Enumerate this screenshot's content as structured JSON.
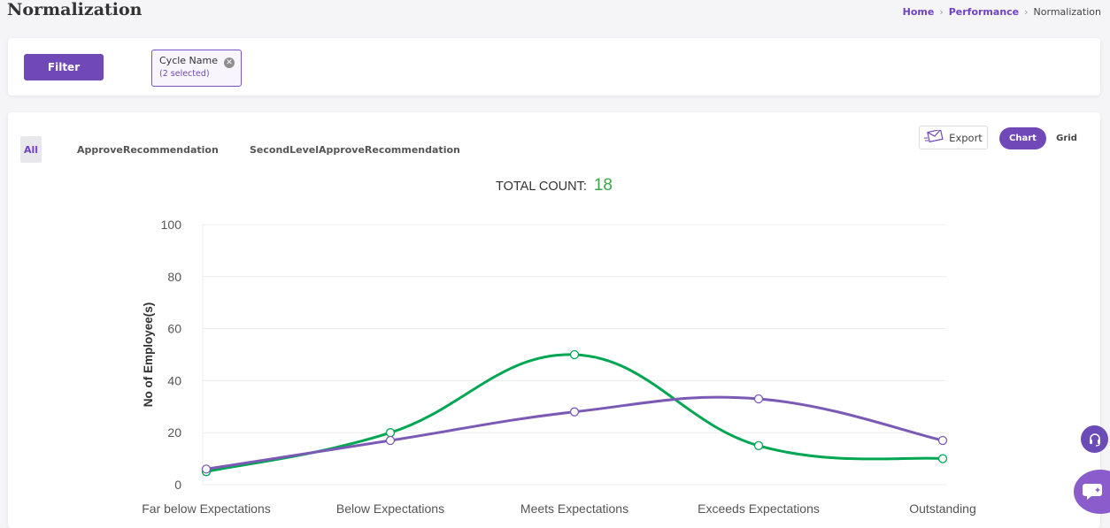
{
  "header": {
    "title": "Normalization",
    "breadcrumb": [
      {
        "label": "Home"
      },
      {
        "label": "Performance"
      },
      {
        "label": "Normalization"
      }
    ]
  },
  "filter": {
    "button_label": "Filter",
    "chip": {
      "title": "Cycle Name",
      "subtitle": "(2 selected)"
    }
  },
  "tabs": [
    {
      "label": "All",
      "active": true
    },
    {
      "label": "ApproveRecommendation",
      "active": false
    },
    {
      "label": "SecondLevelApproveRecommendation",
      "active": false
    }
  ],
  "toolbar": {
    "export_label": "Export",
    "view_options": [
      "Chart",
      "Grid"
    ],
    "selected_view": "Chart"
  },
  "summary": {
    "total_label": "TOTAL COUNT:",
    "total_value": "18"
  },
  "colors": {
    "accent": "#7048b8",
    "green_series": "#00a651",
    "purple_series": "#7b5ab5",
    "total_value": "#3aa54a"
  },
  "icons": {
    "export": "envelope-icon",
    "help": "headset-icon",
    "chat": "chat-icon",
    "chip_close": "close-circle-icon"
  },
  "chart_data": {
    "type": "line",
    "categories": [
      "Far below Expectations",
      "Below Expectations",
      "Meets Expectations",
      "Exceeds Expectations",
      "Outstanding"
    ],
    "series": [
      {
        "values": [
          5,
          20,
          50,
          15,
          10
        ],
        "color": "#00a651"
      },
      {
        "values": [
          6,
          17,
          28,
          33,
          17
        ],
        "color": "#7b5ab5"
      }
    ],
    "ylabel": "No of Employee(s)",
    "xlabel": "",
    "ylim": [
      0,
      100
    ],
    "yticks": [
      0,
      20,
      40,
      60,
      80,
      100
    ],
    "grid": true,
    "curve": "smooth"
  }
}
